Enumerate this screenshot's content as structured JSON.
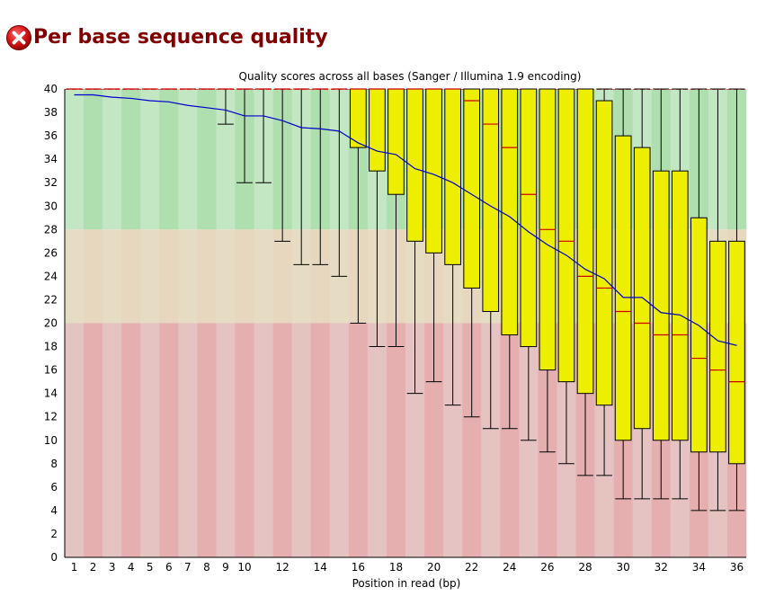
{
  "module": {
    "status": "fail",
    "title": "Per base sequence quality",
    "status_icon": "fail-cross-icon",
    "title_color": "#800000"
  },
  "colors": {
    "green_band": "#c3e6c3",
    "green_band_alt": "#afdeaf",
    "orange_band": "#e6dcc3",
    "orange_band_alt": "#e6d7be",
    "red_band": "#e6c3c3",
    "red_band_alt": "#e6afaf",
    "box_fill": "#eeee00",
    "median_line": "#cc0000",
    "mean_line": "#0000cc"
  },
  "chart_data": {
    "type": "boxplot",
    "title": "Quality scores across all bases (Sanger / Illumina 1.9 encoding)",
    "xlabel": "Position in read (bp)",
    "ylabel": "",
    "ylim": [
      0,
      40
    ],
    "y_ticks": [
      0,
      2,
      4,
      6,
      8,
      10,
      12,
      14,
      16,
      18,
      20,
      22,
      24,
      26,
      28,
      30,
      32,
      34,
      36,
      38,
      40
    ],
    "x_tick_labels": [
      "1",
      "2",
      "3",
      "4",
      "5",
      "6",
      "7",
      "8",
      "9",
      "10",
      "12",
      "14",
      "16",
      "18",
      "20",
      "22",
      "24",
      "26",
      "28",
      "30",
      "32",
      "34",
      "36"
    ],
    "quality_bands": [
      {
        "name": "good",
        "from": 28,
        "to": 40
      },
      {
        "name": "reasonable",
        "from": 20,
        "to": 28
      },
      {
        "name": "poor",
        "from": 0,
        "to": 20
      }
    ],
    "positions": [
      1,
      2,
      3,
      4,
      5,
      6,
      7,
      8,
      9,
      10,
      11,
      12,
      13,
      14,
      15,
      16,
      17,
      18,
      19,
      20,
      21,
      22,
      23,
      24,
      25,
      26,
      27,
      28,
      29,
      30,
      31,
      32,
      33,
      34,
      35,
      36
    ],
    "series": [
      {
        "name": "mean",
        "values": [
          39.5,
          39.5,
          39.3,
          39.2,
          39.0,
          38.9,
          38.6,
          38.4,
          38.2,
          37.7,
          37.7,
          37.3,
          36.7,
          36.6,
          36.4,
          35.4,
          34.7,
          34.4,
          33.2,
          32.7,
          32.0,
          31.0,
          30.0,
          29.1,
          27.8,
          26.7,
          25.8,
          24.6,
          23.8,
          22.2,
          22.2,
          20.9,
          20.7,
          19.8,
          18.5,
          18.1
        ]
      },
      {
        "name": "median",
        "values": [
          40,
          40,
          40,
          40,
          40,
          40,
          40,
          40,
          40,
          40,
          40,
          40,
          40,
          40,
          40,
          40,
          40,
          40,
          40,
          40,
          40,
          39,
          37,
          35,
          31,
          28,
          27,
          24,
          23,
          21,
          20,
          19,
          19,
          17,
          16,
          15
        ]
      },
      {
        "name": "q1",
        "values": [
          40,
          40,
          40,
          40,
          40,
          40,
          40,
          40,
          40,
          40,
          40,
          40,
          40,
          40,
          40,
          35,
          33,
          31,
          27,
          26,
          25,
          23,
          21,
          19,
          18,
          16,
          15,
          14,
          13,
          10,
          11,
          10,
          10,
          9,
          9,
          8
        ]
      },
      {
        "name": "q3",
        "values": [
          40,
          40,
          40,
          40,
          40,
          40,
          40,
          40,
          40,
          40,
          40,
          40,
          40,
          40,
          40,
          40,
          40,
          40,
          40,
          40,
          40,
          40,
          40,
          40,
          40,
          40,
          40,
          40,
          39,
          36,
          35,
          33,
          33,
          29,
          27,
          27
        ]
      },
      {
        "name": "p10",
        "values": [
          40,
          40,
          40,
          40,
          40,
          40,
          40,
          40,
          37,
          32,
          32,
          27,
          25,
          25,
          24,
          20,
          18,
          18,
          14,
          15,
          13,
          12,
          11,
          11,
          10,
          9,
          8,
          7,
          7,
          5,
          5,
          5,
          5,
          4,
          4,
          4
        ]
      },
      {
        "name": "p90",
        "values": [
          40,
          40,
          40,
          40,
          40,
          40,
          40,
          40,
          40,
          40,
          40,
          40,
          40,
          40,
          40,
          40,
          40,
          40,
          40,
          40,
          40,
          40,
          40,
          40,
          40,
          40,
          40,
          40,
          40,
          40,
          40,
          40,
          40,
          40,
          40,
          40
        ]
      }
    ]
  }
}
